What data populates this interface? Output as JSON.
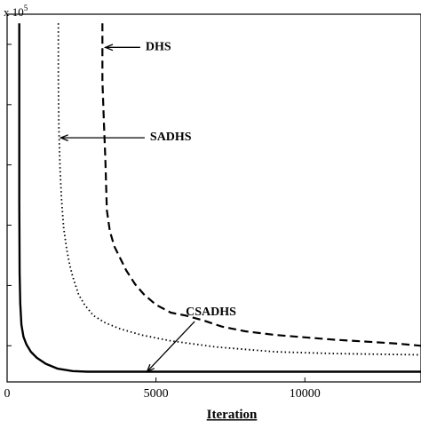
{
  "chart_data": {
    "type": "line",
    "xlabel": "Iteration",
    "ylabel": "",
    "y_exponent_label": "x 10",
    "y_exponent_power": "5",
    "xlim": [
      0,
      13900
    ],
    "ylim": [
      0,
      6.1
    ],
    "x_ticks": [
      0,
      5000,
      10000
    ],
    "x_tick_labels": [
      "0",
      "5000",
      "10000"
    ],
    "y_ticks": [
      0.6,
      1.6,
      2.6,
      3.6,
      4.6,
      5.6
    ],
    "grid": false,
    "series": [
      {
        "name": "DHS",
        "style": "dashed",
        "x": [
          3200,
          3200,
          3250,
          3300,
          3350,
          3450,
          3600,
          3800,
          4000,
          4300,
          4600,
          5000,
          5500,
          6000,
          6600,
          7200,
          8000,
          9000,
          10000,
          11000,
          12000,
          13000,
          13900
        ],
        "y": [
          5.95,
          5.0,
          4.3,
          3.7,
          2.85,
          2.5,
          2.25,
          2.05,
          1.85,
          1.62,
          1.45,
          1.28,
          1.15,
          1.1,
          1.02,
          0.92,
          0.84,
          0.78,
          0.74,
          0.7,
          0.67,
          0.64,
          0.6
        ]
      },
      {
        "name": "SADHS",
        "style": "dotted",
        "x": [
          1720,
          1720,
          1740,
          1780,
          1830,
          1900,
          2000,
          2100,
          2200,
          2400,
          2600,
          2900,
          3300,
          3800,
          4500,
          5500,
          7000,
          9000,
          11000,
          13900
        ],
        "y": [
          5.95,
          5.0,
          4.2,
          3.5,
          3.0,
          2.55,
          2.2,
          1.95,
          1.75,
          1.45,
          1.28,
          1.1,
          0.98,
          0.88,
          0.78,
          0.68,
          0.58,
          0.5,
          0.47,
          0.45
        ]
      },
      {
        "name": "CSADHS",
        "style": "solid",
        "x": [
          410,
          410,
          420,
          440,
          480,
          550,
          650,
          800,
          1000,
          1300,
          1700,
          2200,
          2700,
          3500,
          5000,
          8000,
          13900
        ],
        "y": [
          5.95,
          3.0,
          1.8,
          1.3,
          0.95,
          0.75,
          0.62,
          0.5,
          0.4,
          0.3,
          0.22,
          0.18,
          0.17,
          0.17,
          0.17,
          0.17,
          0.17
        ]
      }
    ],
    "annotations": [
      {
        "text": "DHS",
        "series": "DHS",
        "arrow_to_x": 3300,
        "arrow_to_y": 5.55,
        "label_x": 4650,
        "label_y": 5.58
      },
      {
        "text": "SADHS",
        "series": "SADHS",
        "arrow_to_x": 1800,
        "arrow_to_y": 4.05,
        "label_x": 4800,
        "label_y": 4.08
      },
      {
        "text": "CSADHS",
        "series": "CSADHS",
        "arrow_to_x": 4700,
        "arrow_to_y": 0.17,
        "label_x": 6000,
        "label_y": 1.18
      }
    ]
  }
}
